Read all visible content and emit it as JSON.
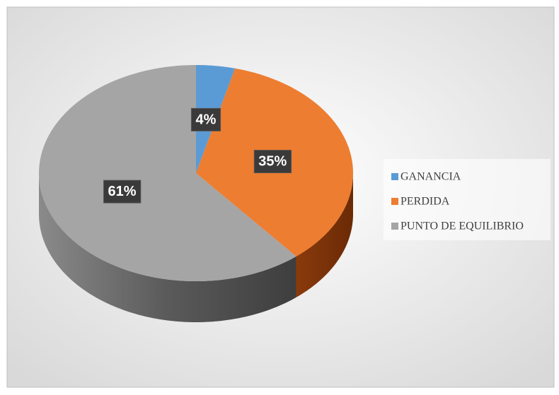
{
  "chart_data": {
    "type": "pie",
    "categories": [
      "GANANCIA",
      "PERDIDA",
      "PUNTO DE EQUILIBRIO"
    ],
    "values": [
      4,
      35,
      61
    ],
    "value_labels": [
      "4%",
      "35%",
      "61%"
    ],
    "colors": [
      "#5b9bd5",
      "#ed7d31",
      "#a5a5a5"
    ],
    "legend": "right"
  }
}
